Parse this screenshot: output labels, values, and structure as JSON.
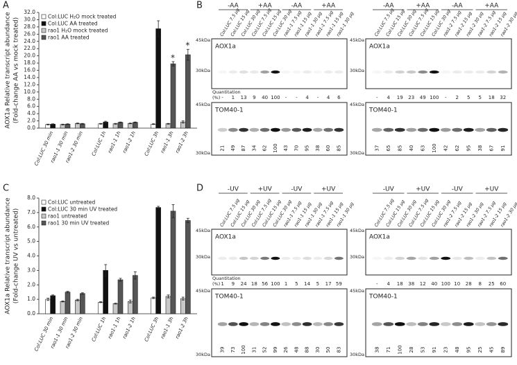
{
  "panel_labels": [
    "A",
    "B",
    "C",
    "D"
  ],
  "chart_data": [
    {
      "type": "bar",
      "ylabel": "AOX1a Relative transcript abundance",
      "ylabel_note": "(Fold-change AA vs mock treated)",
      "categories": [
        "Col:LUC 30 min",
        "rao1-1 30 min",
        "rao1-2 30 min",
        "Col:LUC 1h",
        "rao1-1 1h",
        "rao1-2 1h",
        "Col:LUC 3h",
        "rao1-1 3h",
        "rao1-2 3h"
      ],
      "series": [
        {
          "name": "Col:LUC H₂O mock treated",
          "color": "#ffffff",
          "values": [
            1.0,
            null,
            null,
            1.2,
            null,
            null,
            1.1,
            null,
            null
          ],
          "errors": [
            0.1,
            null,
            null,
            0.1,
            null,
            null,
            0.1,
            null,
            null
          ]
        },
        {
          "name": "Col:LUC AA treated",
          "color": "#111111",
          "values": [
            1.1,
            null,
            null,
            1.7,
            null,
            null,
            27.5,
            null,
            null
          ],
          "errors": [
            0.1,
            null,
            null,
            0.2,
            null,
            null,
            2.2,
            null,
            null
          ]
        },
        {
          "name": "rao1 H₂O mock treated",
          "color": "#c8c8c8",
          "values": [
            null,
            1.0,
            1.3,
            null,
            1.2,
            1.3,
            null,
            1.2,
            1.7
          ],
          "errors": [
            null,
            0.1,
            0.1,
            null,
            0.1,
            0.1,
            null,
            0.1,
            0.3
          ]
        },
        {
          "name": "rao1 AA treated",
          "color": "#555555",
          "values": [
            null,
            1.1,
            1.2,
            null,
            1.6,
            1.6,
            null,
            17.8,
            20.3
          ],
          "errors": [
            null,
            0.1,
            0.1,
            null,
            0.1,
            0.1,
            null,
            0.6,
            1.5
          ]
        }
      ],
      "ylim": [
        0,
        32
      ],
      "yticks": [
        {
          "value": 0,
          "label": "0.0"
        },
        {
          "value": 2,
          "label": "2.0"
        },
        {
          "value": 4,
          "label": "4.0"
        },
        {
          "value": 6,
          "label": "6.0"
        },
        {
          "value": 8,
          "label": "8.0"
        },
        {
          "value": 10,
          "label": "10.0"
        },
        {
          "value": 12,
          "label": "12.0"
        },
        {
          "value": 14,
          "label": "14.0"
        },
        {
          "value": 16,
          "label": "16.0"
        },
        {
          "value": 18,
          "label": "18.0"
        },
        {
          "value": 20,
          "label": "20.0"
        },
        {
          "value": 22,
          "label": "22.0"
        },
        {
          "value": 24,
          "label": "24.0"
        },
        {
          "value": 26,
          "label": "26.0"
        },
        {
          "value": 28,
          "label": "28.0"
        },
        {
          "value": 30,
          "label": "30.0"
        },
        {
          "value": 32,
          "label": "32.0"
        }
      ],
      "annotations": [
        {
          "text": "*",
          "category": "rao1-1 3h"
        },
        {
          "text": "*",
          "category": "rao1-2 3h"
        }
      ]
    },
    {
      "type": "bar",
      "ylabel": "AOX1a Relative transcript abundance",
      "ylabel_note": "(Fold-change UV vs untreated)",
      "categories": [
        "Col:LUC 30 min",
        "rao1-1 30 min",
        "rao1-2 30 min",
        "Col:LUC 1h",
        "rao1-1 1h",
        "rao1-2 1h",
        "Col:LUC 3h",
        "rao1-1 3h",
        "rao1-2 3h"
      ],
      "series": [
        {
          "name": "Col:LUC untreated",
          "color": "#ffffff",
          "values": [
            1.0,
            null,
            null,
            0.8,
            null,
            null,
            1.1,
            null,
            null
          ],
          "errors": [
            0.08,
            null,
            null,
            0.03,
            null,
            null,
            0.05,
            null,
            null
          ]
        },
        {
          "name": "Col:LUC 30 min UV treated",
          "color": "#111111",
          "values": [
            1.25,
            null,
            null,
            3.0,
            null,
            null,
            7.35,
            null,
            null
          ],
          "errors": [
            0.05,
            null,
            null,
            0.4,
            null,
            null,
            0.08,
            null,
            null
          ]
        },
        {
          "name": "rao1 untreated",
          "color": "#c8c8c8",
          "values": [
            null,
            0.85,
            0.95,
            null,
            0.7,
            0.85,
            null,
            1.2,
            1.05
          ],
          "errors": [
            null,
            0.03,
            0.05,
            null,
            0.03,
            0.1,
            null,
            0.1,
            0.1
          ]
        },
        {
          "name": "rao1 30 min UV treated",
          "color": "#555555",
          "values": [
            null,
            1.5,
            1.4,
            null,
            2.35,
            2.65,
            null,
            7.1,
            6.45
          ],
          "errors": [
            null,
            0.05,
            0.05,
            null,
            0.1,
            0.25,
            null,
            0.45,
            0.15
          ]
        }
      ],
      "ylim": [
        0,
        8
      ],
      "yticks": [
        {
          "value": 0,
          "label": "0.0"
        },
        {
          "value": 1,
          "label": "1.0"
        },
        {
          "value": 2,
          "label": "2.0"
        },
        {
          "value": 3,
          "label": "3.0"
        },
        {
          "value": 4,
          "label": "4.0"
        },
        {
          "value": 5,
          "label": "5.0"
        },
        {
          "value": 6,
          "label": "6.0"
        },
        {
          "value": 7,
          "label": "7.0"
        },
        {
          "value": 8,
          "label": "8.0"
        }
      ]
    }
  ],
  "blots": [
    {
      "halves": [
        {
          "headers": [
            "-AA",
            "+AA",
            "-AA",
            "+AA"
          ],
          "lanes": [
            "Col:LUC 7.5 µg",
            "Col:LUC 15 µg",
            "Col:LUC 30 µg",
            "Col:LUC 7.5 µg",
            "Col:LUC 15 µg",
            "Col:LUC 30 µg",
            "rao1-1 7.5 µg",
            "rao1-1 15 µg",
            "rao1-1 30 µg",
            "rao1-1 7.5 µg",
            "rao1-1 15 µg",
            "rao1-1 30 µg"
          ],
          "aox": {
            "label": "AOX1a",
            "markers": [
              "45kDa",
              "30kDa"
            ],
            "quantitation_label": [
              "Quantitation",
              "(%)"
            ],
            "values": [
              "-",
              "1",
              "13",
              "9",
              "40",
              "100",
              "-",
              "-",
              "4",
              "-",
              "4",
              "6"
            ]
          },
          "tom": {
            "label": "TOM40-1",
            "markers": [
              "45kDa",
              "30kDa"
            ],
            "values": [
              "21",
              "49",
              "87",
              "34",
              "62",
              "100",
              "43",
              "70",
              "95",
              "38",
              "60",
              "85"
            ]
          }
        },
        {
          "headers": [
            "-AA",
            "+AA",
            "-AA",
            "+AA"
          ],
          "lanes": [
            "Col:LUC 7.5 µg",
            "Col:LUC 15 µg",
            "Col:LUC 30 µg",
            "Col:LUC 7.5 µg",
            "Col:LUC 15 µg",
            "Col:LUC 30 µg",
            "rao1-2 7.5 µg",
            "rao1-2 15 µg",
            "rao1-2 30 µg",
            "rao1-2 7.5 µg",
            "rao1-2 15 µg",
            "rao1-2 30 µg"
          ],
          "aox": {
            "label": "AOX1a",
            "markers": [
              "45kDa",
              "30kDa"
            ],
            "values": [
              "-",
              "4",
              "19",
              "23",
              "49",
              "100",
              "-",
              "2",
              "5",
              "5",
              "18",
              "32"
            ]
          },
          "tom": {
            "label": "TOM40-1",
            "markers": [
              "45kDa",
              "30kDa"
            ],
            "values": [
              "37",
              "65",
              "85",
              "40",
              "63",
              "100",
              "42",
              "62",
              "95",
              "38",
              "67",
              "91"
            ]
          }
        }
      ]
    },
    {
      "halves": [
        {
          "headers": [
            "-UV",
            "+UV",
            "-UV",
            "+UV"
          ],
          "lanes": [
            "Col:LUC 7.5 µg",
            "Col:LUC 15 µg",
            "Col:LUC 30 µg",
            "Col:LUC 7.5 µg",
            "Col:LUC 15 µg",
            "Col:LUC 30 µg",
            "rao1-1 7.5 µg",
            "rao1-1 15 µg",
            "rao1-1 30 µg",
            "rao1-1 7.5 µg",
            "rao1-1 15 µg",
            "rao1-1 30 µg"
          ],
          "aox": {
            "label": "AOX1a",
            "markers": [
              "45kDa",
              "30kDa"
            ],
            "quantitation_label": [
              "Quantitation",
              "(%)"
            ],
            "values": [
              "1",
              "9",
              "24",
              "18",
              "56",
              "100",
              "1",
              "5",
              "14",
              "5",
              "17",
              "59"
            ]
          },
          "tom": {
            "label": "TOM40-1",
            "markers": [
              "45kDa",
              "30kDa"
            ],
            "values": [
              "39",
              "73",
              "100",
              "31",
              "52",
              "99",
              "26",
              "48",
              "88",
              "30",
              "50",
              "83"
            ]
          }
        },
        {
          "headers": [
            "-UV",
            "+UV",
            "-UV",
            "+UV"
          ],
          "lanes": [
            "Col:LUC 7.5 µg",
            "Col:LUC 15 µg",
            "Col:LUC 30 µg",
            "Col:LUC 7.5 µg",
            "Col:LUC 15 µg",
            "Col:LUC 30 µg",
            "rao1-2 7.5 µg",
            "rao1-2 15 µg",
            "rao1-2 30 µg",
            "rao1-2 7.5 µg",
            "rao1-2 15 µg",
            "rao1-2 30 µg"
          ],
          "aox": {
            "label": "AOX1a",
            "markers": [
              "45kDa",
              "30kDa"
            ],
            "values": [
              "-",
              "4",
              "18",
              "38",
              "12",
              "40",
              "100",
              "10",
              "28",
              "8",
              "25",
              "60"
            ]
          },
          "tom": {
            "label": "TOM40-1",
            "markers": [
              "45kDa",
              "30kDa"
            ],
            "values": [
              "38",
              "71",
              "100",
              "28",
              "53",
              "91",
              "23",
              "48",
              "95",
              "25",
              "45",
              "89"
            ]
          }
        }
      ]
    }
  ]
}
